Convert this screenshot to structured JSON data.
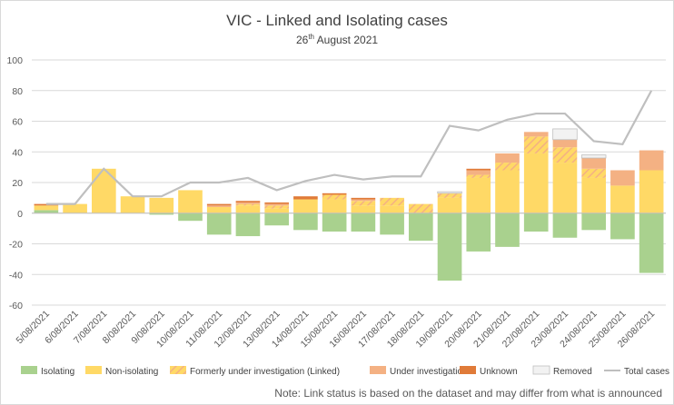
{
  "chart_data": {
    "type": "bar",
    "title": "VIC - Linked and Isolating cases",
    "subtitle_day": "26",
    "subtitle_suffix": "th",
    "subtitle_rest": " August 2021",
    "ylim": [
      -60,
      100
    ],
    "yticks": [
      -60,
      -40,
      -20,
      0,
      20,
      40,
      60,
      80,
      100
    ],
    "grid": true,
    "legend_position": "bottom",
    "categories": [
      "5/08/2021",
      "6/08/2021",
      "7/08/2021",
      "8/08/2021",
      "9/08/2021",
      "10/08/2021",
      "11/08/2021",
      "12/08/2021",
      "13/08/2021",
      "14/08/2021",
      "15/08/2021",
      "16/08/2021",
      "17/08/2021",
      "18/08/2021",
      "19/08/2021",
      "20/08/2021",
      "21/08/2021",
      "22/08/2021",
      "23/08/2021",
      "24/08/2021",
      "25/08/2021",
      "26/08/2021"
    ],
    "series": [
      {
        "name": "Isolating",
        "color": "#a9d18e",
        "type": "bar",
        "values": [
          2,
          0,
          0,
          0,
          -1,
          -5,
          -14,
          -15,
          -8,
          -11,
          -12,
          -12,
          -14,
          -18,
          -44,
          -25,
          -22,
          -12,
          -16,
          -11,
          -17,
          -39
        ]
      },
      {
        "name": "Non-isolating",
        "color": "#ffd966",
        "type": "bar",
        "values": [
          3,
          6,
          29,
          11,
          10,
          15,
          4,
          5,
          3,
          9,
          9,
          5,
          5,
          0,
          10,
          23,
          28,
          39,
          33,
          23,
          18,
          28
        ]
      },
      {
        "name": "Formerly under investigation (Linked)",
        "color": "#ffd966",
        "hatch": "#f4b183",
        "type": "bar",
        "values": [
          0,
          0,
          0,
          0,
          0,
          0,
          0,
          1,
          2,
          0,
          3,
          3,
          5,
          6,
          3,
          2,
          5,
          11,
          10,
          6,
          0,
          0
        ]
      },
      {
        "name": "Under investigation",
        "color": "#f4b183",
        "type": "bar",
        "values": [
          0,
          0,
          0,
          0,
          0,
          0,
          1,
          1,
          1,
          0,
          0,
          1,
          0,
          0,
          0,
          3,
          6,
          3,
          5,
          7,
          10,
          13
        ]
      },
      {
        "name": "Unknown",
        "color": "#e07b39",
        "type": "bar",
        "values": [
          1,
          0,
          0,
          0,
          0,
          0,
          1,
          1,
          1,
          2,
          1,
          1,
          0,
          0,
          0,
          1,
          0,
          0,
          0,
          0,
          0,
          0
        ]
      },
      {
        "name": "Removed",
        "color": "#f2f2f2",
        "type": "bar",
        "values": [
          0,
          0,
          0,
          0,
          0,
          0,
          0,
          0,
          0,
          0,
          0,
          0,
          0,
          0,
          1,
          0,
          0,
          0,
          7,
          2,
          0,
          0
        ]
      },
      {
        "name": "Total cases",
        "color": "#bfbfbf",
        "type": "line",
        "values": [
          6,
          6,
          29,
          11,
          11,
          20,
          20,
          23,
          15,
          21,
          25,
          22,
          24,
          24,
          57,
          54,
          61,
          65,
          65,
          47,
          45,
          80
        ]
      }
    ],
    "note": "Note: Link status is based on the dataset and may differ from what is announced"
  }
}
